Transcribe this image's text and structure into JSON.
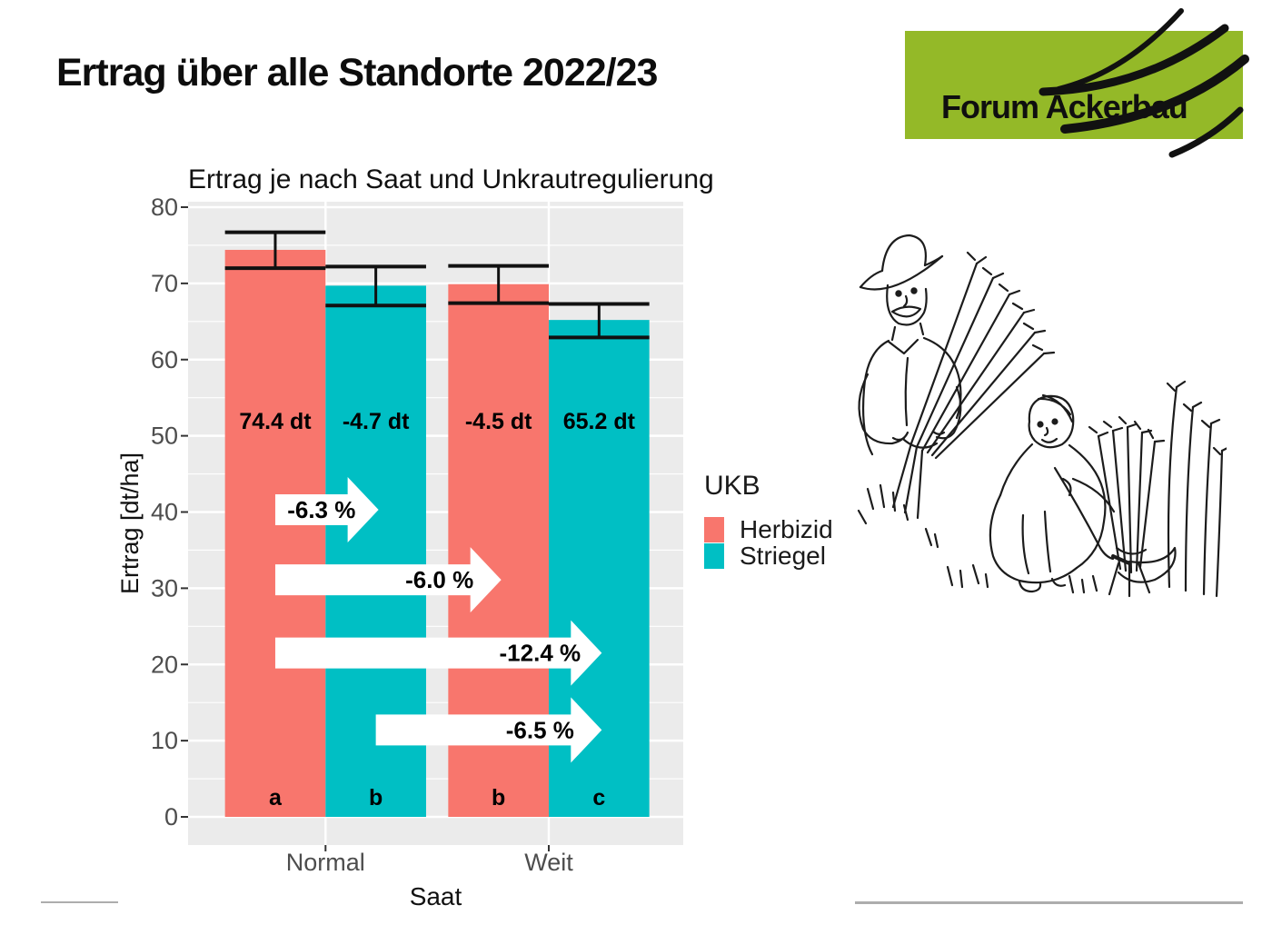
{
  "page": {
    "title": "Ertrag über alle Standorte 2022/23"
  },
  "logo": {
    "text": "Forum Ackerbau",
    "bg_color": "#94B928",
    "swoosh_color": "#111111"
  },
  "chart_data": {
    "type": "bar",
    "title": "Ertrag je nach Saat und Unkrautregulierung",
    "xlabel": "Saat",
    "ylabel": "Ertrag [dt/ha]",
    "ylim": [
      0,
      80
    ],
    "y_ticks": [
      0,
      10,
      20,
      30,
      40,
      50,
      60,
      70,
      80
    ],
    "categories": [
      "Normal",
      "Weit"
    ],
    "legend_title": "UKB",
    "legend_position": "right",
    "grid": true,
    "panel_bg": "#EBEBEB",
    "grid_color": "#FFFFFF",
    "tick_label_color": "#4D4D4D",
    "series": [
      {
        "name": "Herbizid",
        "color": "#F8766D",
        "values": [
          74.4,
          69.9
        ],
        "bar_labels": [
          "74.4 dt",
          "-4.5 dt"
        ],
        "letters": [
          "a",
          "b"
        ],
        "error_low": [
          72.0,
          67.4
        ],
        "error_high": [
          76.7,
          72.3
        ]
      },
      {
        "name": "Striegel",
        "color": "#00BFC4",
        "values": [
          69.7,
          65.2
        ],
        "bar_labels": [
          "-4.7 dt",
          "65.2 dt"
        ],
        "letters": [
          "b",
          "c"
        ],
        "error_low": [
          67.1,
          62.9
        ],
        "error_high": [
          72.2,
          67.3
        ]
      }
    ],
    "arrows": [
      {
        "label": "-6.3 %",
        "from_bar": 0,
        "to_bar": 1,
        "y_value": 40.3
      },
      {
        "label": "-6.0 %",
        "from_bar": 0,
        "to_bar": 2,
        "y_value": 31.1
      },
      {
        "label": "-12.4 %",
        "from_bar": 0,
        "to_bar": 3,
        "y_value": 21.5
      },
      {
        "label": "-6.5 %",
        "from_bar": 1,
        "to_bar": 3,
        "y_value": 11.4
      }
    ]
  },
  "illustration": {
    "description": "Strichzeichnung: Bauer mit Hut und Bäuerin ernten Getreide von Hand mit Sichel"
  }
}
